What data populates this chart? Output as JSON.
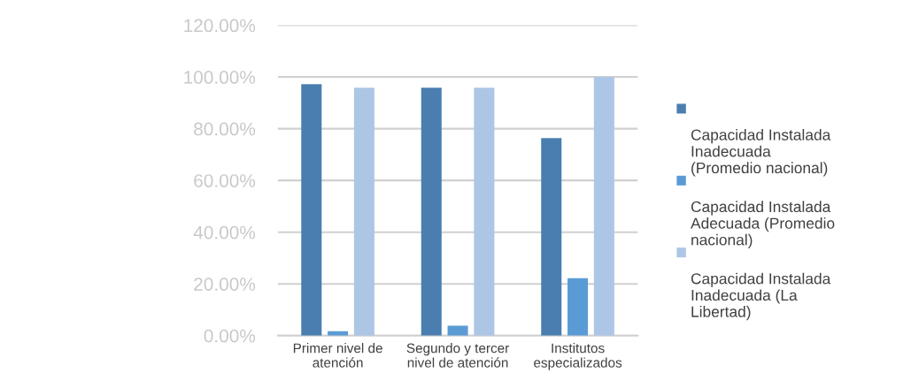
{
  "chart_data": {
    "type": "bar",
    "categories": [
      "Primer nivel de atención",
      "Segundo y tercer nivel de atención",
      "Institutos especializados"
    ],
    "series": [
      {
        "name": "Capacidad Instalada Inadecuada (Promedio nacional)",
        "color": "#4a7eb0",
        "values": [
          97.2,
          95.8,
          76.4
        ]
      },
      {
        "name": "Capacidad Instalada Adecuada (Promedio nacional)",
        "color": "#5b9bd5",
        "values": [
          1.7,
          3.8,
          22.2
        ]
      },
      {
        "name": "Capacidad Instalada Inadecuada (La Libertad)",
        "color": "#adc6e5",
        "values": [
          95.8,
          95.8,
          100
        ]
      }
    ],
    "ylim": [
      0,
      120
    ],
    "yticks": [
      {
        "value": 0,
        "label": "0.00%"
      },
      {
        "value": 20,
        "label": "20.00%"
      },
      {
        "value": 40,
        "label": "40.00%"
      },
      {
        "value": 60,
        "label": "60.00%"
      },
      {
        "value": 80,
        "label": "80.00%"
      },
      {
        "value": 100,
        "label": "100.00%"
      },
      {
        "value": 120,
        "label": "120.00%"
      }
    ],
    "grid": "y",
    "legend": "right"
  }
}
